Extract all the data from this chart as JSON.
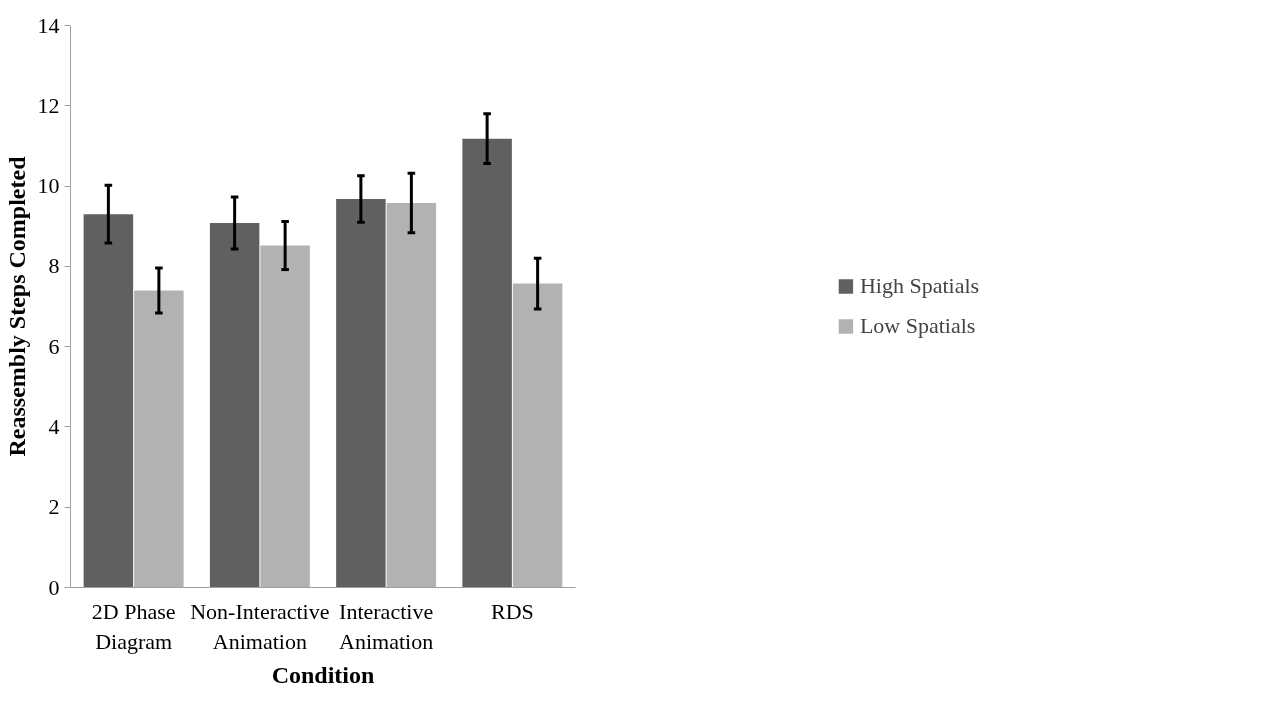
{
  "chart_data": {
    "type": "bar",
    "xlabel": "Condition",
    "ylabel": "Reassembly Steps Completed",
    "categories": [
      "2D Phase Diagram",
      "Non-Interactive Animation",
      "Interactive Animation",
      "RDS"
    ],
    "series": [
      {
        "name": "High Spatials",
        "color": "#606060",
        "values": [
          9.3,
          9.08,
          9.68,
          11.18
        ],
        "errors": [
          0.72,
          0.65,
          0.58,
          0.62
        ]
      },
      {
        "name": "Low Spatials",
        "color": "#b2b2b2",
        "values": [
          7.4,
          8.52,
          9.58,
          7.57
        ],
        "errors": [
          0.56,
          0.6,
          0.74,
          0.63
        ]
      }
    ],
    "ylim": [
      0,
      14
    ],
    "yticks": [
      0,
      2,
      4,
      6,
      8,
      10,
      12,
      14
    ],
    "grid": false,
    "legend": "right"
  }
}
